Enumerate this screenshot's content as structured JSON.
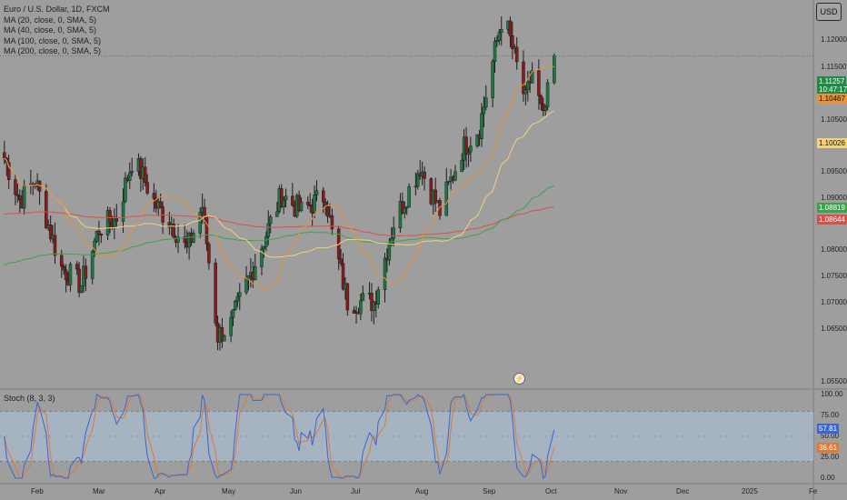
{
  "legend": {
    "title": "Euro / U.S. Dollar, 1D, FXCM",
    "ma": [
      "MA (20, close, 0, SMA, 5)",
      "MA (40, close, 0, SMA, 5)",
      "MA (100, close, 0, SMA, 5)",
      "MA (200, close, 0, SMA, 5)"
    ]
  },
  "stoch_label": "Stoch (8, 3, 3)",
  "currency": "USD",
  "price_axis": [
    "1.12000",
    "1.11500",
    "1.10500",
    "1.09500",
    "1.09000",
    "1.08000",
    "1.07500",
    "1.07000",
    "1.06500",
    "1.05500"
  ],
  "badges": {
    "last_price": "1.11257",
    "countdown": "10:47:17",
    "ma20": "1.10467",
    "ma40": "1.10026",
    "ma100": "1.08819",
    "ma200": "1.08644",
    "stoch_k": "57.81",
    "stoch_d": "36.61"
  },
  "stoch_axis": [
    "100.00",
    "75.00",
    "50.00",
    "25.00",
    "0.00"
  ],
  "date_axis": [
    "Feb",
    "Mar",
    "Apr",
    "May",
    "Jun",
    "Jul",
    "Aug",
    "Sep",
    "Oct",
    "Nov",
    "Dec",
    "2025",
    "Fe"
  ],
  "lightning_icon": "⚡",
  "colors": {
    "up": "#1b7a43",
    "down": "#8b1a1a",
    "ma20": "#e8933a",
    "ma40": "#f2d27a",
    "ma100": "#3fa24a",
    "ma200": "#d8504a",
    "stoch_k": "#3a65d4",
    "stoch_d": "#e07a30",
    "last": "#1f8a46",
    "stoch_band": "#a7b8c8"
  },
  "chart_data": {
    "type": "candlestick",
    "symbol": "Euro / U.S. Dollar",
    "interval": "1D",
    "price_range": [
      1.0535,
      1.1225
    ],
    "anchors": [
      [
        "2024-01-10",
        1.0945
      ],
      [
        "2024-01-17",
        1.087
      ],
      [
        "2024-01-24",
        1.0905
      ],
      [
        "2024-02-01",
        1.08
      ],
      [
        "2024-02-05",
        1.075
      ],
      [
        "2024-02-14",
        1.072
      ],
      [
        "2024-02-22",
        1.082
      ],
      [
        "2024-03-01",
        1.084
      ],
      [
        "2024-03-08",
        1.094
      ],
      [
        "2024-03-12",
        1.092
      ],
      [
        "2024-03-19",
        1.086
      ],
      [
        "2024-03-26",
        1.083
      ],
      [
        "2024-04-02",
        1.078
      ],
      [
        "2024-04-09",
        1.086
      ],
      [
        "2024-04-16",
        1.063
      ],
      [
        "2024-04-22",
        1.065
      ],
      [
        "2024-05-03",
        1.076
      ],
      [
        "2024-05-15",
        1.088
      ],
      [
        "2024-05-24",
        1.085
      ],
      [
        "2024-06-04",
        1.088
      ],
      [
        "2024-06-07",
        1.081
      ],
      [
        "2024-06-14",
        1.069
      ],
      [
        "2024-06-26",
        1.069
      ],
      [
        "2024-07-05",
        1.083
      ],
      [
        "2024-07-17",
        1.093
      ],
      [
        "2024-07-26",
        1.085
      ],
      [
        "2024-08-05",
        1.096
      ],
      [
        "2024-08-13",
        1.1
      ],
      [
        "2024-08-23",
        1.119
      ],
      [
        "2024-08-26",
        1.117
      ],
      [
        "2024-09-03",
        1.1045
      ],
      [
        "2024-09-06",
        1.11
      ],
      [
        "2024-09-11",
        1.101
      ],
      [
        "2024-09-16",
        1.1126
      ]
    ],
    "moving_averages": [
      {
        "name": "MA (20, close, 0, SMA, 5)",
        "last": 1.10467
      },
      {
        "name": "MA (40, close, 0, SMA, 5)",
        "last": 1.10026
      },
      {
        "name": "MA (100, close, 0, SMA, 5)",
        "last": 1.08819
      },
      {
        "name": "MA (200, close, 0, SMA, 5)",
        "last": 1.08644
      }
    ],
    "stochastic": {
      "name": "Stoch (8, 3, 3)",
      "k": 57.81,
      "d": 36.61,
      "levels": [
        20,
        80
      ],
      "range": [
        0,
        100
      ]
    }
  }
}
